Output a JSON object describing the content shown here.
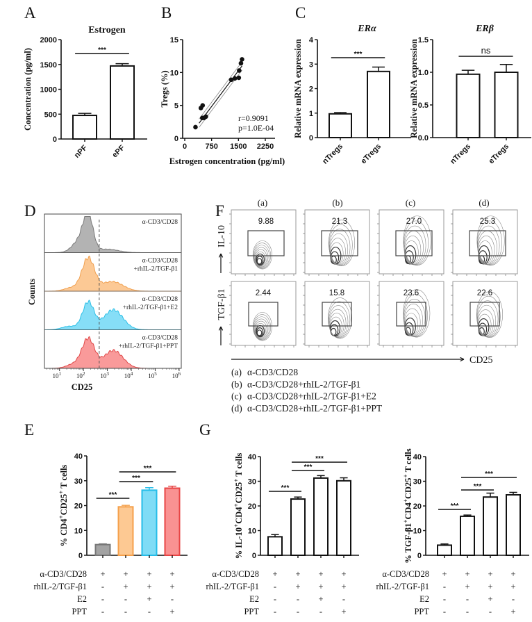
{
  "panel_labels": [
    "A",
    "B",
    "C",
    "D",
    "E",
    "F",
    "G"
  ],
  "chart_data": [
    {
      "id": "A",
      "type": "bar",
      "title": "Estrogen",
      "ylabel": "Concentration (pg/ml)",
      "categories": [
        "nPF",
        "ePF"
      ],
      "values": [
        475,
        1470
      ],
      "errors": [
        40,
        45
      ],
      "ylim": [
        0,
        2000
      ],
      "yticks": [
        "0",
        "500",
        "1000",
        "1500",
        "2000"
      ],
      "comparisons": [
        {
          "groups": [
            0,
            1
          ],
          "label": "***"
        }
      ],
      "colors": {
        "fill": "#ffffff",
        "edge": "#111111"
      }
    },
    {
      "id": "B",
      "type": "scatter",
      "xlabel": "Estrogen concentration (pg/ml)",
      "ylabel": "Tregs (%)",
      "xlim": [
        0,
        2250
      ],
      "xticks": [
        "0",
        "750",
        "1500",
        "2250"
      ],
      "ylim": [
        0,
        15
      ],
      "yticks": [
        "0",
        "5",
        "10",
        "15"
      ],
      "points": [
        [
          300,
          1.7
        ],
        [
          450,
          4.6
        ],
        [
          500,
          5.0
        ],
        [
          490,
          3.1
        ],
        [
          540,
          3.1
        ],
        [
          590,
          3.3
        ],
        [
          1300,
          8.9
        ],
        [
          1400,
          9.1
        ],
        [
          1510,
          9.2
        ],
        [
          1520,
          10.3
        ],
        [
          1570,
          11.4
        ],
        [
          1600,
          12.0
        ]
      ],
      "fit": {
        "x": [
          400,
          1600
        ],
        "y": [
          2.3,
          11.0
        ]
      },
      "annotations": [
        "r=0.9091",
        "p=1.0E-04"
      ]
    },
    {
      "id": "C-left",
      "type": "bar",
      "title": "ERα",
      "ylabel": "Relative mRNA expression",
      "categories": [
        "nTregs",
        "eTregs"
      ],
      "values": [
        0.97,
        2.7
      ],
      "errors": [
        0.05,
        0.18
      ],
      "ylim": [
        0,
        4
      ],
      "yticks": [
        "0",
        "1",
        "2",
        "3",
        "4"
      ],
      "comparisons": [
        {
          "groups": [
            0,
            1
          ],
          "label": "***"
        }
      ],
      "colors": {
        "fill": "#ffffff",
        "edge": "#111111"
      }
    },
    {
      "id": "C-right",
      "type": "bar",
      "title": "ERβ",
      "ylabel": "Relative mRNA expression",
      "categories": [
        "nTregs",
        "eTregs"
      ],
      "values": [
        0.97,
        1.0
      ],
      "errors": [
        0.06,
        0.12
      ],
      "ylim": [
        0,
        1.5
      ],
      "yticks": [
        "0.0",
        "0.5",
        "1.0",
        "1.5"
      ],
      "comparisons": [
        {
          "groups": [
            0,
            1
          ],
          "label": "ns"
        }
      ],
      "colors": {
        "fill": "#ffffff",
        "edge": "#111111"
      }
    },
    {
      "id": "D",
      "type": "area",
      "xlabel": "CD25",
      "ylabel": "Counts",
      "x_scale": "log",
      "xtick_base": "10",
      "xtick_exponents": [
        "1",
        "2",
        "3",
        "4",
        "5",
        "6"
      ],
      "gate_log10": 2.66,
      "series": [
        {
          "name_lines": [
            "α-CD3/CD28"
          ],
          "fill": "#b3b3b3",
          "edge": "#7a7a7a",
          "peaks_log10": [
            {
              "center": 2.2,
              "amp": 1.0,
              "width": 0.2
            },
            {
              "center": 1.85,
              "amp": 0.35,
              "width": 0.3
            },
            {
              "center": 3.0,
              "amp": 0.1,
              "width": 0.45
            }
          ]
        },
        {
          "name_lines": [
            "α-CD3/CD28",
            "+rhIL-2/TGF-β1"
          ],
          "fill": "#fcc995",
          "edge": "#f0a050",
          "peaks_log10": [
            {
              "center": 2.2,
              "amp": 0.95,
              "width": 0.26
            },
            {
              "center": 3.2,
              "amp": 0.28,
              "width": 0.45
            },
            {
              "center": 1.5,
              "amp": 0.1,
              "width": 0.3
            }
          ]
        },
        {
          "name_lines": [
            "α-CD3/CD28",
            "+rhIL-2/TGF-β1+E2"
          ],
          "fill": "#86def7",
          "edge": "#2bbfe6",
          "peaks_log10": [
            {
              "center": 2.2,
              "amp": 0.8,
              "width": 0.24
            },
            {
              "center": 3.25,
              "amp": 0.58,
              "width": 0.4
            },
            {
              "center": 1.4,
              "amp": 0.1,
              "width": 0.3
            }
          ]
        },
        {
          "name_lines": [
            "α-CD3/CD28",
            "+rhIL-2/TGF-β1+PPT"
          ],
          "fill": "#f99a9a",
          "edge": "#e04848",
          "peaks_log10": [
            {
              "center": 2.2,
              "amp": 0.85,
              "width": 0.26
            },
            {
              "center": 3.25,
              "amp": 0.52,
              "width": 0.4
            },
            {
              "center": 1.6,
              "amp": 0.12,
              "width": 0.3
            }
          ]
        }
      ]
    },
    {
      "id": "F",
      "type": "scatter",
      "xlabel": "CD25",
      "row_labels": [
        "IL-10",
        "TGF-β1"
      ],
      "columns": [
        "(a)",
        "(b)",
        "(c)",
        "(d)"
      ],
      "gate_percent": [
        [
          "9.88",
          "21.3",
          "27.0",
          "25.3"
        ],
        [
          "2.44",
          "15.8",
          "23.6",
          "22.6"
        ]
      ],
      "legend": [
        {
          "key": "(a)",
          "text": "α-CD3/CD28"
        },
        {
          "key": "(b)",
          "text": "α-CD3/CD28+rhIL-2/TGF-β1"
        },
        {
          "key": "(c)",
          "text": "α-CD3/CD28+rhIL-2/TGF-β1+E2"
        },
        {
          "key": "(d)",
          "text": "α-CD3/CD28+rhIL-2/TGF-β1+PPT"
        }
      ]
    },
    {
      "id": "E",
      "type": "bar",
      "ylabel_parts": [
        "% CD4",
        "+",
        "CD25",
        "+",
        " T cells"
      ],
      "values": [
        4.3,
        19.5,
        26.2,
        27.0
      ],
      "errors": [
        0.3,
        0.6,
        1.0,
        0.8
      ],
      "ylim": [
        0,
        40
      ],
      "yticks": [
        "0",
        "10",
        "20",
        "30",
        "40"
      ],
      "comparisons": [
        {
          "groups": [
            0,
            1
          ],
          "label": "***"
        },
        {
          "groups": [
            1,
            2
          ],
          "label": "***"
        },
        {
          "groups": [
            1,
            3
          ],
          "label": "***"
        }
      ],
      "bar_colors": [
        {
          "fill": "#a3a3a3",
          "edge": "#777777"
        },
        {
          "fill": "#fdc993",
          "edge": "#f5a04b"
        },
        {
          "fill": "#7fdcf6",
          "edge": "#25bde8"
        },
        {
          "fill": "#f99292",
          "edge": "#e84545"
        }
      ],
      "treatments": [
        {
          "label": "α-CD3/CD28",
          "signs": [
            "+",
            "+",
            "+",
            "+"
          ]
        },
        {
          "label": "rhIL-2/TGF-β1",
          "signs": [
            "-",
            "+",
            "+",
            "+"
          ]
        },
        {
          "label": "E2",
          "signs": [
            "-",
            "-",
            "+",
            "-"
          ]
        },
        {
          "label": "PPT",
          "signs": [
            "-",
            "-",
            "-",
            "+"
          ]
        }
      ]
    },
    {
      "id": "G-left",
      "type": "bar",
      "ylabel_parts": [
        "% IL-10",
        "+",
        "CD4",
        "+",
        "CD25",
        "+",
        " T cells"
      ],
      "values": [
        7.5,
        22.8,
        31.3,
        30.2
      ],
      "errors": [
        0.9,
        0.8,
        1.0,
        1.2
      ],
      "ylim": [
        0,
        40
      ],
      "yticks": [
        "0",
        "10",
        "20",
        "30",
        "40"
      ],
      "comparisons": [
        {
          "groups": [
            0,
            1
          ],
          "label": "***"
        },
        {
          "groups": [
            1,
            2
          ],
          "label": "***"
        },
        {
          "groups": [
            1,
            3
          ],
          "label": "***"
        }
      ],
      "colors": {
        "fill": "#ffffff",
        "edge": "#111111"
      },
      "treatments": [
        {
          "label": "α-CD3/CD28",
          "signs": [
            "+",
            "+",
            "+",
            "+"
          ]
        },
        {
          "label": "rhIL-2/TGF-β1",
          "signs": [
            "-",
            "+",
            "+",
            "+"
          ]
        },
        {
          "label": "E2",
          "signs": [
            "-",
            "-",
            "+",
            "-"
          ]
        },
        {
          "label": "PPT",
          "signs": [
            "-",
            "-",
            "-",
            "+"
          ]
        }
      ]
    },
    {
      "id": "G-right",
      "type": "bar",
      "ylabel_parts": [
        "% TGF-β1",
        "+",
        "CD4",
        "+",
        "CD25",
        "+",
        " T cells"
      ],
      "values": [
        4.1,
        15.8,
        23.6,
        24.5
      ],
      "errors": [
        0.5,
        0.5,
        1.6,
        1.0
      ],
      "ylim": [
        0,
        40
      ],
      "yticks": [
        "0",
        "10",
        "20",
        "30",
        "40"
      ],
      "comparisons": [
        {
          "groups": [
            0,
            1
          ],
          "label": "***"
        },
        {
          "groups": [
            1,
            2
          ],
          "label": "***"
        },
        {
          "groups": [
            1,
            3
          ],
          "label": "***"
        }
      ],
      "colors": {
        "fill": "#ffffff",
        "edge": "#111111"
      },
      "treatments": [
        {
          "label": "α-CD3/CD28",
          "signs": [
            "+",
            "+",
            "+",
            "+"
          ]
        },
        {
          "label": "rhIL-2/TGF-β1",
          "signs": [
            "-",
            "+",
            "+",
            "+"
          ]
        },
        {
          "label": "E2",
          "signs": [
            "-",
            "-",
            "+",
            "-"
          ]
        },
        {
          "label": "PPT",
          "signs": [
            "-",
            "-",
            "-",
            "+"
          ]
        }
      ]
    }
  ]
}
